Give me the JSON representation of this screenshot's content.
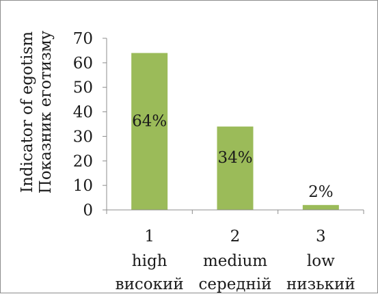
{
  "chart_data": {
    "type": "bar",
    "categories": [
      "1",
      "2",
      "3"
    ],
    "category_labels": [
      [
        "1",
        "high",
        "високий"
      ],
      [
        "2",
        "medium",
        "середній"
      ],
      [
        "3",
        "low",
        "низький"
      ]
    ],
    "values": [
      64,
      34,
      2
    ],
    "data_labels": [
      "64%",
      "34%",
      "2%"
    ],
    "ylabel": [
      "Indicator of egotism",
      "Показник еготизму"
    ],
    "ylim": [
      0,
      70
    ],
    "yticks": [
      0,
      10,
      20,
      30,
      40,
      50,
      60,
      70
    ],
    "bar_color": "#9bbb59",
    "grid": false,
    "legend": "none"
  }
}
